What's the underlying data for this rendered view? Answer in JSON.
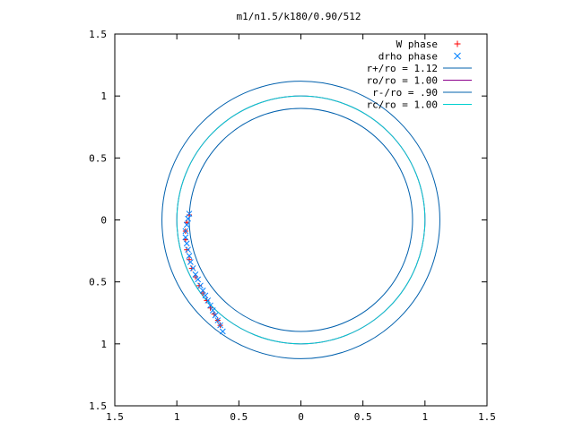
{
  "chart_data": {
    "type": "scatter",
    "title": "m1/n1.5/k180/0.90/512",
    "xlabel": "",
    "ylabel": "",
    "xlim": [
      -1.5,
      1.5
    ],
    "ylim": [
      -1.5,
      1.5
    ],
    "x_ticks": [
      -1.5,
      -1,
      -0.5,
      0,
      0.5,
      1,
      1.5
    ],
    "y_ticks": [
      -1.5,
      -1,
      -0.5,
      0,
      0.5,
      1,
      1.5
    ],
    "x_tick_labels": [
      "1.5",
      "1",
      "0.5",
      "0",
      "0.5",
      "1",
      "1.5"
    ],
    "y_tick_labels": [
      "1.5",
      "1",
      "0.5",
      "0",
      "0.5",
      "1",
      "1.5"
    ],
    "grid": false,
    "legend_position": "top-right",
    "series": [
      {
        "name": "W phase",
        "kind": "points",
        "marker": "+",
        "color": "#ff0000",
        "x": [
          -0.9,
          -0.92,
          -0.93,
          -0.93,
          -0.92,
          -0.9,
          -0.88,
          -0.85,
          -0.82,
          -0.79,
          -0.76,
          -0.73,
          -0.7,
          -0.67,
          -0.65
        ],
        "y": [
          0.04,
          -0.02,
          -0.09,
          -0.16,
          -0.24,
          -0.32,
          -0.39,
          -0.46,
          -0.53,
          -0.59,
          -0.65,
          -0.71,
          -0.76,
          -0.81,
          -0.85
        ]
      },
      {
        "name": "drho phase",
        "kind": "points",
        "marker": "x",
        "color": "#0080ff",
        "x": [
          -0.9,
          -0.91,
          -0.92,
          -0.93,
          -0.93,
          -0.92,
          -0.91,
          -0.9,
          -0.89,
          -0.87,
          -0.85,
          -0.83,
          -0.81,
          -0.79,
          -0.77,
          -0.75,
          -0.73,
          -0.71,
          -0.69,
          -0.67,
          -0.65,
          -0.63
        ],
        "y": [
          0.05,
          0.01,
          -0.04,
          -0.09,
          -0.14,
          -0.19,
          -0.24,
          -0.29,
          -0.34,
          -0.39,
          -0.44,
          -0.48,
          -0.53,
          -0.57,
          -0.61,
          -0.65,
          -0.69,
          -0.73,
          -0.77,
          -0.81,
          -0.85,
          -0.9
        ]
      },
      {
        "name": "r+/ro = 1.12",
        "kind": "circle",
        "radius": 1.12,
        "color": "#0060ad"
      },
      {
        "name": "ro/ro = 1.00",
        "kind": "circle",
        "radius": 1.0,
        "color": "#8b008b"
      },
      {
        "name": "r-/ro = .90",
        "kind": "circle",
        "radius": 0.9,
        "color": "#0060ad"
      },
      {
        "name": "rc/ro = 1.00",
        "kind": "circle",
        "radius": 1.0,
        "color": "#00d0d0"
      }
    ]
  }
}
